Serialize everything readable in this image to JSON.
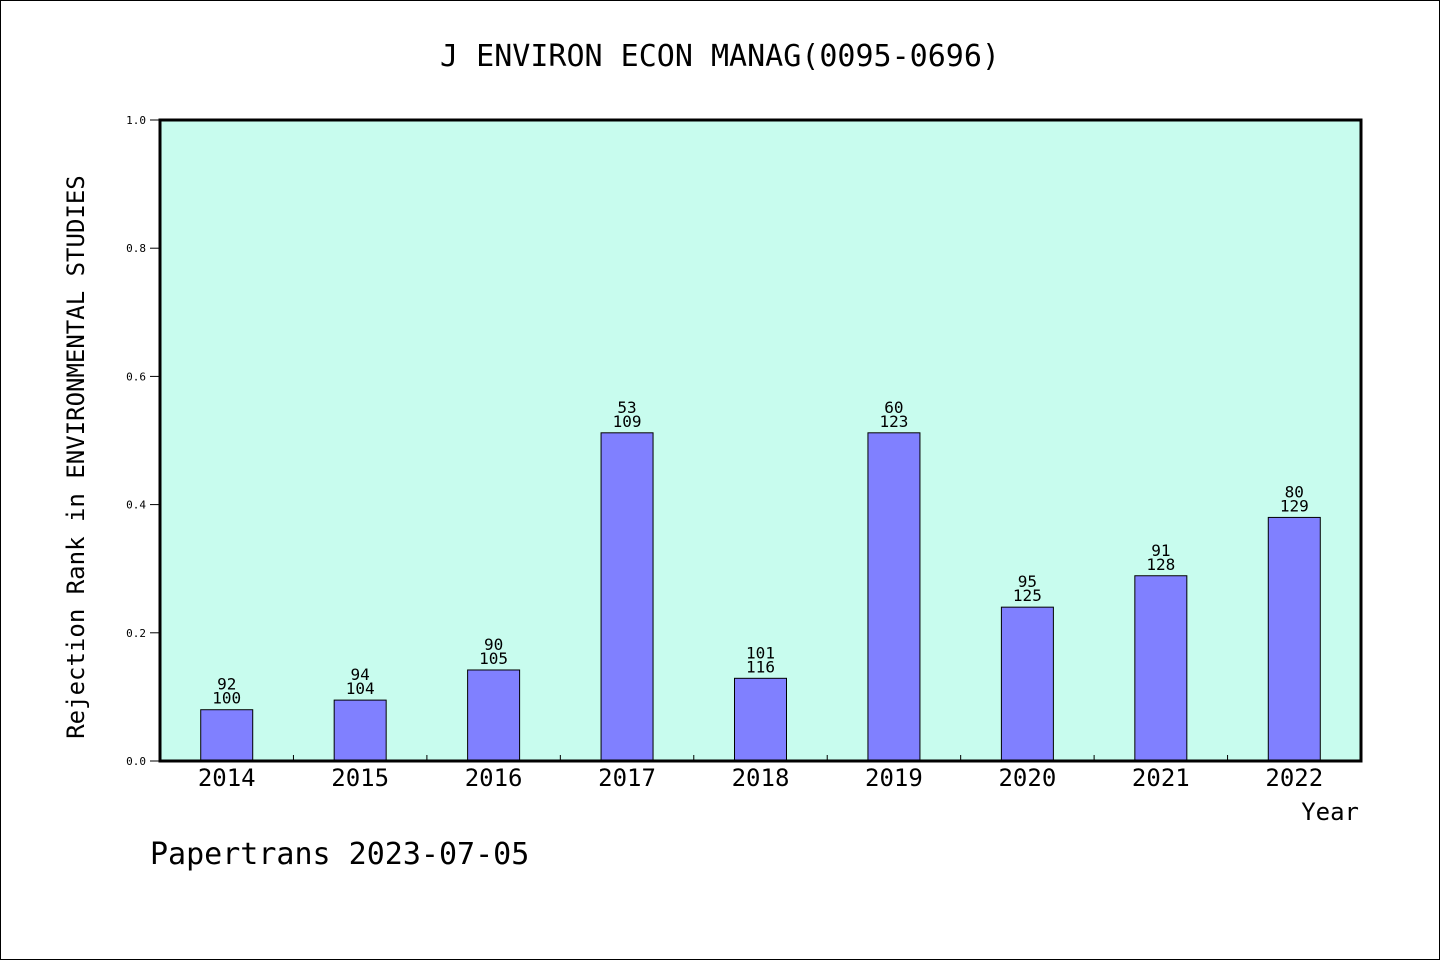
{
  "chart_data": {
    "type": "bar",
    "title": "J ENVIRON ECON MANAG(0095-0696)",
    "xlabel": "Year",
    "ylabel": "Rejection Rank in ENVIRONMENTAL STUDIES",
    "ylim": [
      0,
      1.0
    ],
    "yticks": [
      "0.0",
      "0.2",
      "0.4",
      "0.6",
      "0.8",
      "1.0"
    ],
    "categories": [
      "2014",
      "2015",
      "2016",
      "2017",
      "2018",
      "2019",
      "2020",
      "2021",
      "2022"
    ],
    "values": [
      0.08,
      0.095,
      0.142,
      0.512,
      0.129,
      0.512,
      0.24,
      0.289,
      0.38
    ],
    "rank_labels": [
      "92",
      "94",
      "90",
      "53",
      "101",
      "60",
      "95",
      "91",
      "80"
    ],
    "total_labels": [
      "100",
      "104",
      "105",
      "109",
      "116",
      "123",
      "125",
      "128",
      "129"
    ],
    "grid": false,
    "colors": {
      "plot_background": "#c8fcee",
      "bar_fill": "#8080ff",
      "bar_stroke": "#000000"
    }
  },
  "footer": {
    "text": "Papertrans 2023-07-05"
  }
}
